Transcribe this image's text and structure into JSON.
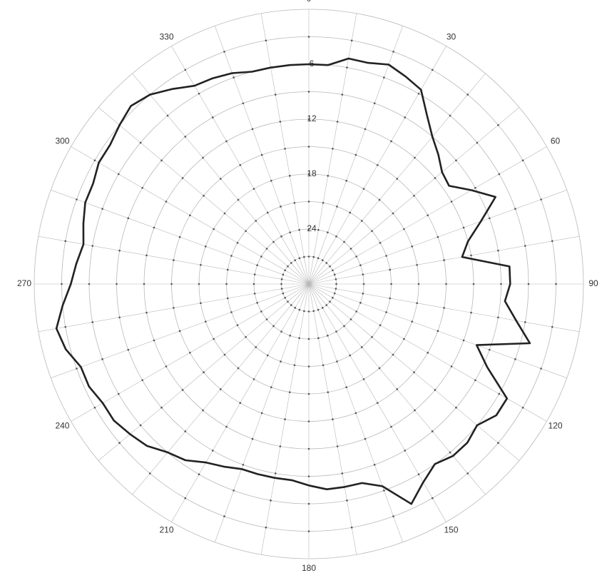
{
  "chart_data": {
    "type": "polar-line",
    "angle_direction": "clockwise",
    "zero_angle_position": "top",
    "angle_ticks": [
      0,
      30,
      60,
      90,
      120,
      150,
      180,
      210,
      240,
      270,
      300,
      330
    ],
    "angle_tick_labels": [
      "0",
      "30",
      "60",
      "90",
      "120",
      "150",
      "180",
      "210",
      "240",
      "270",
      "300",
      "330"
    ],
    "radial_axis": {
      "inverted": true,
      "min": 0,
      "max": 30,
      "step": 3
    },
    "radial_tick_labels": [
      "6",
      "12",
      "18",
      "24"
    ],
    "radial_tick_values": [
      6,
      12,
      18,
      24
    ],
    "grid": true,
    "series": [
      {
        "theta": [
          0,
          5,
          10,
          15,
          20,
          25,
          30,
          35,
          40,
          45,
          50,
          55,
          60,
          65,
          70,
          75,
          80,
          85,
          90,
          95,
          100,
          105,
          110,
          115,
          120,
          125,
          130,
          135,
          140,
          145,
          150,
          155,
          160,
          165,
          170,
          175,
          180,
          185,
          190,
          195,
          200,
          205,
          210,
          215,
          220,
          225,
          230,
          235,
          240,
          245,
          250,
          255,
          260,
          265,
          270,
          275,
          280,
          285,
          290,
          295,
          300,
          305,
          310,
          315,
          320,
          325,
          330,
          335,
          340,
          345,
          350,
          355
        ],
        "r": [
          6,
          6,
          5,
          5,
          4.5,
          5,
          5.5,
          7.5,
          9,
          10,
          11,
          11.3,
          9.5,
          7.5,
          10,
          12,
          13,
          8,
          8,
          8.5,
          7,
          5,
          10.5,
          8.5,
          5,
          5,
          6,
          5.5,
          5.5,
          6,
          5,
          3.5,
          6.5,
          7.5,
          7.5,
          7.5,
          8,
          8.5,
          8.5,
          8.5,
          8.5,
          8,
          7.5,
          6.5,
          6,
          5,
          4.5,
          4,
          4,
          3.5,
          3.5,
          2.5,
          2,
          3,
          4,
          4.5,
          5,
          4.5,
          4,
          4,
          3.5,
          3.5,
          3,
          2.5,
          3,
          4,
          5,
          5.2,
          5.5,
          6,
          6,
          6
        ]
      }
    ]
  }
}
